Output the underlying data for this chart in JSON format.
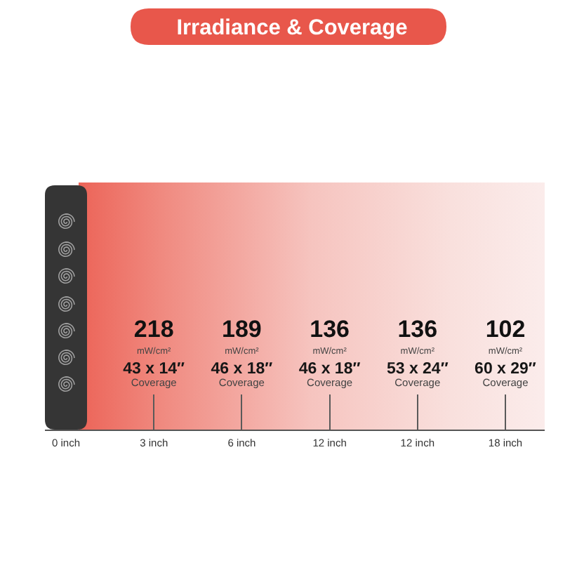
{
  "chart_data": {
    "type": "other",
    "title": "Irradiance & Coverage",
    "categories": [
      "0 inch",
      "3 inch",
      "6 inch",
      "12 inch",
      "12 inch",
      "18 inch"
    ],
    "series": [
      {
        "name": "mW/cm²",
        "color": "#111111",
        "values": [
          null,
          218,
          189,
          136,
          136,
          102
        ]
      },
      {
        "name": "Coverage",
        "values": [
          null,
          null,
          null,
          null,
          null,
          null
        ],
        "value_labels": [
          null,
          "43 x 14″",
          "46 x 18″",
          "46 x 18″",
          "53 x 24″",
          "60 x 29″"
        ]
      }
    ],
    "data_labels": true
  }
}
